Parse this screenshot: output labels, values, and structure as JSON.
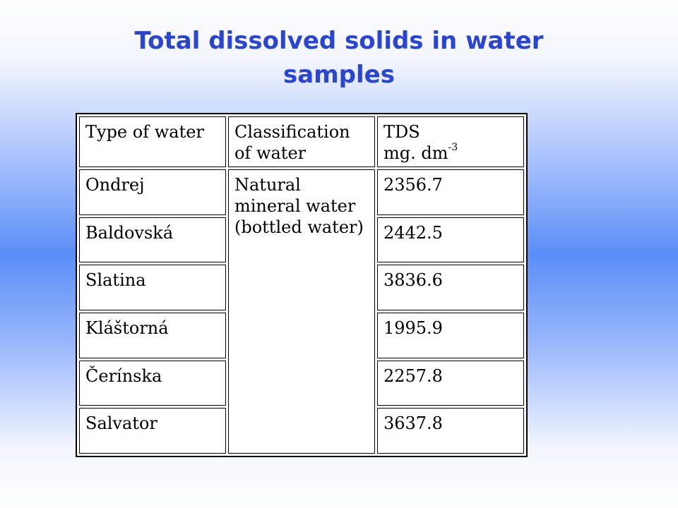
{
  "title": "Total dissolved solids in water samples",
  "table": {
    "header": {
      "type": "Type of water",
      "classification": "Classification of water",
      "tds": "TDS",
      "tds_unit": "mg. dm",
      "tds_unit_exp": "-3"
    },
    "classification": "Natural mineral water (bottled water)",
    "rows": [
      [
        "Ondrej",
        2356.7
      ],
      [
        "Baldovská",
        2442.5
      ],
      [
        "Slatina",
        3836.6
      ],
      [
        "Kláštorná",
        1995.9
      ],
      [
        "Čerínska",
        2257.8
      ],
      [
        "Salvator",
        3637.8
      ]
    ]
  }
}
